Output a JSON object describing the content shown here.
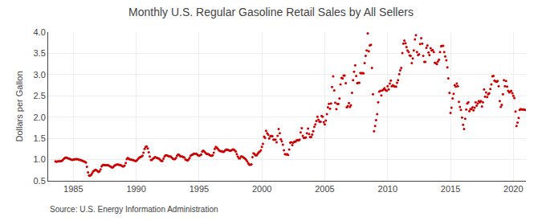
{
  "chart_data": {
    "type": "scatter",
    "title": "Monthly U.S. Regular Gasoline Retail Sales by All Sellers",
    "y_label": "Dollars per Gallon",
    "annotations": [
      "Source: U.S. Energy Information Administration"
    ],
    "color": "#CC0000",
    "marker": "circle",
    "grid": true,
    "xlim": [
      1983.0,
      2021.0
    ],
    "xticks": [
      1985,
      1990,
      1995,
      2000,
      2005,
      2010,
      2015,
      2020
    ],
    "ylim": [
      0.5,
      4.0
    ],
    "yticks": [
      0.5,
      {
        "value": 1.0,
        "label": "1.0"
      },
      1.5,
      {
        "value": 2.0,
        "label": "2.0"
      },
      2.5,
      {
        "value": 3.0,
        "label": "3.0"
      },
      3.5,
      {
        "value": 4.0,
        "label": "4.0"
      }
    ],
    "x": [
      1983.58,
      1983.67,
      1983.75,
      1983.83,
      1983.92,
      1984.0,
      1984.08,
      1984.17,
      1984.25,
      1984.33,
      1984.42,
      1984.5,
      1984.58,
      1984.67,
      1984.75,
      1984.83,
      1984.92,
      1985.0,
      1985.08,
      1985.17,
      1985.25,
      1985.33,
      1985.42,
      1985.5,
      1985.58,
      1985.67,
      1985.75,
      1985.83,
      1985.92,
      1986.0,
      1986.08,
      1986.17,
      1986.25,
      1986.33,
      1986.42,
      1986.5,
      1986.58,
      1986.67,
      1986.75,
      1986.83,
      1986.92,
      1987.0,
      1987.08,
      1987.17,
      1987.25,
      1987.33,
      1987.42,
      1987.5,
      1987.58,
      1987.67,
      1987.75,
      1987.83,
      1987.92,
      1988.0,
      1988.08,
      1988.17,
      1988.25,
      1988.33,
      1988.42,
      1988.5,
      1988.58,
      1988.67,
      1988.75,
      1988.83,
      1988.92,
      1989.0,
      1989.08,
      1989.17,
      1989.25,
      1989.33,
      1989.42,
      1989.5,
      1989.58,
      1989.67,
      1989.75,
      1989.83,
      1989.92,
      1990.0,
      1990.08,
      1990.17,
      1990.25,
      1990.33,
      1990.42,
      1990.5,
      1990.58,
      1990.67,
      1990.75,
      1990.83,
      1990.92,
      1991.0,
      1991.08,
      1991.17,
      1991.25,
      1991.33,
      1991.42,
      1991.5,
      1991.58,
      1991.67,
      1991.75,
      1991.83,
      1991.92,
      1992.0,
      1992.08,
      1992.17,
      1992.25,
      1992.33,
      1992.42,
      1992.5,
      1992.58,
      1992.67,
      1992.75,
      1992.83,
      1992.92,
      1993.0,
      1993.08,
      1993.17,
      1993.25,
      1993.33,
      1993.42,
      1993.5,
      1993.58,
      1993.67,
      1993.75,
      1993.83,
      1993.92,
      1994.0,
      1994.08,
      1994.17,
      1994.25,
      1994.33,
      1994.42,
      1994.5,
      1994.58,
      1994.67,
      1994.75,
      1994.83,
      1994.92,
      1995.0,
      1995.08,
      1995.17,
      1995.25,
      1995.33,
      1995.42,
      1995.5,
      1995.58,
      1995.67,
      1995.75,
      1995.83,
      1995.92,
      1996.0,
      1996.08,
      1996.17,
      1996.25,
      1996.33,
      1996.42,
      1996.5,
      1996.58,
      1996.67,
      1996.75,
      1996.83,
      1996.92,
      1997.0,
      1997.08,
      1997.17,
      1997.25,
      1997.33,
      1997.42,
      1997.5,
      1997.58,
      1997.67,
      1997.75,
      1997.83,
      1997.92,
      1998.0,
      1998.08,
      1998.17,
      1998.25,
      1998.33,
      1998.42,
      1998.5,
      1998.58,
      1998.67,
      1998.75,
      1998.83,
      1998.92,
      1999.0,
      1999.08,
      1999.17,
      1999.25,
      1999.33,
      1999.42,
      1999.5,
      1999.58,
      1999.67,
      1999.75,
      1999.83,
      1999.92,
      2000.0,
      2000.08,
      2000.17,
      2000.25,
      2000.33,
      2000.42,
      2000.5,
      2000.58,
      2000.67,
      2000.75,
      2000.83,
      2000.92,
      2001.0,
      2001.08,
      2001.17,
      2001.25,
      2001.33,
      2001.42,
      2001.5,
      2001.58,
      2001.67,
      2001.75,
      2001.83,
      2001.92,
      2002.0,
      2002.08,
      2002.17,
      2002.25,
      2002.33,
      2002.42,
      2002.5,
      2002.58,
      2002.67,
      2002.75,
      2002.83,
      2002.92,
      2003.0,
      2003.08,
      2003.17,
      2003.25,
      2003.33,
      2003.42,
      2003.5,
      2003.58,
      2003.67,
      2003.75,
      2003.83,
      2003.92,
      2004.0,
      2004.08,
      2004.17,
      2004.25,
      2004.33,
      2004.42,
      2004.5,
      2004.58,
      2004.67,
      2004.75,
      2004.83,
      2004.92,
      2005.0,
      2005.08,
      2005.17,
      2005.25,
      2005.33,
      2005.42,
      2005.5,
      2005.58,
      2005.67,
      2005.75,
      2005.83,
      2005.92,
      2006.0,
      2006.08,
      2006.17,
      2006.25,
      2006.33,
      2006.42,
      2006.5,
      2006.58,
      2006.67,
      2006.75,
      2006.83,
      2006.92,
      2007.0,
      2007.08,
      2007.17,
      2007.25,
      2007.33,
      2007.42,
      2007.5,
      2007.58,
      2007.67,
      2007.75,
      2007.83,
      2007.92,
      2008.0,
      2008.08,
      2008.17,
      2008.25,
      2008.33,
      2008.42,
      2008.5,
      2008.58,
      2008.67,
      2008.75,
      2008.83,
      2008.92,
      2009.0,
      2009.08,
      2009.17,
      2009.25,
      2009.33,
      2009.42,
      2009.5,
      2009.58,
      2009.67,
      2009.75,
      2009.83,
      2009.92,
      2010.0,
      2010.08,
      2010.17,
      2010.25,
      2010.33,
      2010.42,
      2010.5,
      2010.58,
      2010.67,
      2010.75,
      2010.83,
      2010.92,
      2011.0,
      2011.08,
      2011.17,
      2011.25,
      2011.33,
      2011.42,
      2011.5,
      2011.58,
      2011.67,
      2011.75,
      2011.83,
      2011.92,
      2012.0,
      2012.08,
      2012.17,
      2012.25,
      2012.33,
      2012.42,
      2012.5,
      2012.58,
      2012.67,
      2012.75,
      2012.83,
      2012.92,
      2013.0,
      2013.08,
      2013.17,
      2013.25,
      2013.33,
      2013.42,
      2013.5,
      2013.58,
      2013.67,
      2013.75,
      2013.83,
      2013.92,
      2014.0,
      2014.08,
      2014.17,
      2014.25,
      2014.33,
      2014.42,
      2014.5,
      2014.58,
      2014.67,
      2014.75,
      2014.83,
      2014.92,
      2015.0,
      2015.08,
      2015.17,
      2015.25,
      2015.33,
      2015.42,
      2015.5,
      2015.58,
      2015.67,
      2015.75,
      2015.83,
      2015.92,
      2016.0,
      2016.08,
      2016.17,
      2016.25,
      2016.33,
      2016.42,
      2016.5,
      2016.58,
      2016.67,
      2016.75,
      2016.83,
      2016.92,
      2017.0,
      2017.08,
      2017.17,
      2017.25,
      2017.33,
      2017.42,
      2017.5,
      2017.58,
      2017.67,
      2017.75,
      2017.83,
      2017.92,
      2018.0,
      2018.08,
      2018.17,
      2018.25,
      2018.33,
      2018.42,
      2018.5,
      2018.58,
      2018.67,
      2018.75,
      2018.83,
      2018.92,
      2019.0,
      2019.08,
      2019.17,
      2019.25,
      2019.33,
      2019.42,
      2019.5,
      2019.58,
      2019.67,
      2019.75,
      2019.83,
      2019.92,
      2020.0,
      2020.08,
      2020.17,
      2020.25,
      2020.33,
      2020.42,
      2020.5,
      2020.58,
      2020.67,
      2020.75,
      2020.83,
      2020.92
    ],
    "values": [
      0.96,
      0.95,
      0.96,
      0.96,
      0.96,
      0.97,
      0.97,
      0.99,
      1.02,
      1.04,
      1.05,
      1.04,
      1.03,
      1.02,
      1.01,
      1.0,
      0.99,
      1.0,
      1.0,
      1.01,
      1.01,
      1.01,
      1.0,
      0.99,
      0.99,
      0.98,
      0.97,
      0.96,
      0.95,
      0.93,
      0.83,
      0.7,
      0.63,
      0.62,
      0.64,
      0.68,
      0.72,
      0.74,
      0.76,
      0.75,
      0.73,
      0.71,
      0.72,
      0.77,
      0.84,
      0.87,
      0.88,
      0.87,
      0.87,
      0.87,
      0.87,
      0.86,
      0.84,
      0.83,
      0.81,
      0.82,
      0.85,
      0.87,
      0.88,
      0.89,
      0.88,
      0.88,
      0.87,
      0.86,
      0.84,
      0.84,
      0.86,
      0.92,
      1.01,
      1.04,
      1.02,
      1.0,
      1.0,
      0.99,
      0.99,
      0.98,
      0.97,
      0.97,
      0.99,
      1.02,
      1.05,
      1.06,
      1.07,
      1.09,
      1.16,
      1.25,
      1.3,
      1.31,
      1.26,
      1.17,
      1.07,
      0.99,
      0.99,
      1.02,
      1.04,
      1.06,
      1.05,
      1.04,
      1.03,
      1.02,
      0.99,
      0.97,
      0.97,
      1.02,
      1.07,
      1.1,
      1.1,
      1.09,
      1.08,
      1.07,
      1.07,
      1.05,
      1.02,
      1.01,
      1.01,
      1.04,
      1.09,
      1.12,
      1.11,
      1.08,
      1.07,
      1.07,
      1.06,
      1.05,
      1.0,
      0.99,
      0.98,
      1.0,
      1.04,
      1.09,
      1.11,
      1.12,
      1.14,
      1.14,
      1.14,
      1.13,
      1.1,
      1.09,
      1.1,
      1.12,
      1.19,
      1.21,
      1.19,
      1.16,
      1.14,
      1.13,
      1.13,
      1.11,
      1.09,
      1.09,
      1.1,
      1.16,
      1.25,
      1.3,
      1.28,
      1.25,
      1.22,
      1.2,
      1.2,
      1.19,
      1.18,
      1.19,
      1.22,
      1.24,
      1.23,
      1.23,
      1.21,
      1.21,
      1.22,
      1.24,
      1.24,
      1.22,
      1.19,
      1.13,
      1.07,
      1.03,
      1.03,
      1.07,
      1.07,
      1.06,
      1.04,
      1.02,
      0.99,
      0.96,
      0.91,
      0.88,
      0.88,
      0.89,
      1.06,
      1.15,
      1.13,
      1.1,
      1.1,
      1.14,
      1.17,
      1.19,
      1.22,
      1.3,
      1.37,
      1.54,
      1.51,
      1.68,
      1.62,
      1.59,
      1.5,
      1.55,
      1.56,
      1.55,
      1.47,
      1.47,
      1.47,
      1.41,
      1.56,
      1.72,
      1.62,
      1.48,
      1.43,
      1.35,
      1.22,
      1.13,
      1.12,
      1.13,
      1.11,
      1.24,
      1.4,
      1.41,
      1.34,
      1.4,
      1.42,
      1.42,
      1.45,
      1.46,
      1.45,
      1.47,
      1.64,
      1.74,
      1.56,
      1.51,
      1.51,
      1.52,
      1.62,
      1.73,
      1.6,
      1.53,
      1.53,
      1.59,
      1.67,
      1.77,
      1.83,
      1.91,
      2.01,
      1.94,
      1.89,
      1.89,
      2.03,
      2.01,
      1.88,
      1.83,
      1.92,
      2.07,
      2.23,
      2.31,
      2.2,
      2.32,
      2.71,
      2.96,
      2.63,
      2.34,
      2.19,
      2.31,
      2.31,
      2.44,
      2.77,
      2.92,
      2.91,
      2.98,
      2.98,
      2.8,
      2.23,
      2.26,
      2.33,
      2.24,
      2.28,
      2.57,
      2.87,
      3.07,
      3.22,
      2.97,
      2.8,
      2.81,
      2.81,
      3.04,
      3.03,
      3.04,
      3.03,
      3.27,
      3.44,
      3.57,
      3.97,
      3.55,
      3.69,
      3.7,
      3.16,
      2.54,
      1.67,
      1.79,
      1.93,
      2.07,
      2.35,
      2.6,
      2.62,
      2.51,
      2.63,
      2.65,
      2.68,
      2.64,
      2.62,
      2.73,
      2.65,
      2.79,
      2.86,
      2.73,
      2.75,
      2.73,
      2.72,
      2.72,
      2.81,
      2.87,
      3.01,
      3.1,
      3.16,
      3.51,
      3.73,
      3.8,
      3.74,
      3.65,
      3.57,
      3.53,
      3.45,
      3.44,
      3.27,
      3.38,
      3.57,
      3.83,
      3.93,
      3.53,
      3.46,
      3.48,
      3.72,
      3.86,
      3.73,
      3.44,
      3.3,
      3.3,
      3.63,
      3.69,
      3.52,
      3.46,
      3.62,
      3.57,
      3.58,
      3.53,
      3.28,
      3.27,
      3.25,
      3.31,
      3.35,
      3.53,
      3.67,
      3.68,
      3.68,
      3.53,
      3.43,
      3.34,
      3.17,
      2.91,
      2.57,
      2.1,
      2.22,
      2.44,
      2.55,
      2.75,
      2.72,
      2.79,
      2.73,
      2.36,
      2.24,
      2.17,
      1.99,
      1.82,
      1.72,
      1.96,
      2.18,
      2.32,
      2.35,
      2.14,
      2.19,
      2.19,
      2.23,
      2.16,
      2.22,
      2.35,
      2.27,
      2.32,
      2.38,
      2.35,
      2.38,
      2.25,
      2.35,
      2.65,
      2.48,
      2.58,
      2.47,
      2.54,
      2.56,
      2.66,
      2.77,
      2.96,
      2.97,
      2.86,
      2.84,
      2.83,
      2.85,
      2.73,
      2.38,
      2.24,
      2.29,
      2.54,
      2.87,
      2.73,
      2.85,
      2.72,
      2.62,
      2.58,
      2.6,
      2.62,
      2.56,
      2.5,
      2.45,
      2.13,
      1.79,
      1.87,
      1.98,
      2.17,
      2.19,
      2.18,
      2.18,
      2.18,
      2.17
    ]
  }
}
